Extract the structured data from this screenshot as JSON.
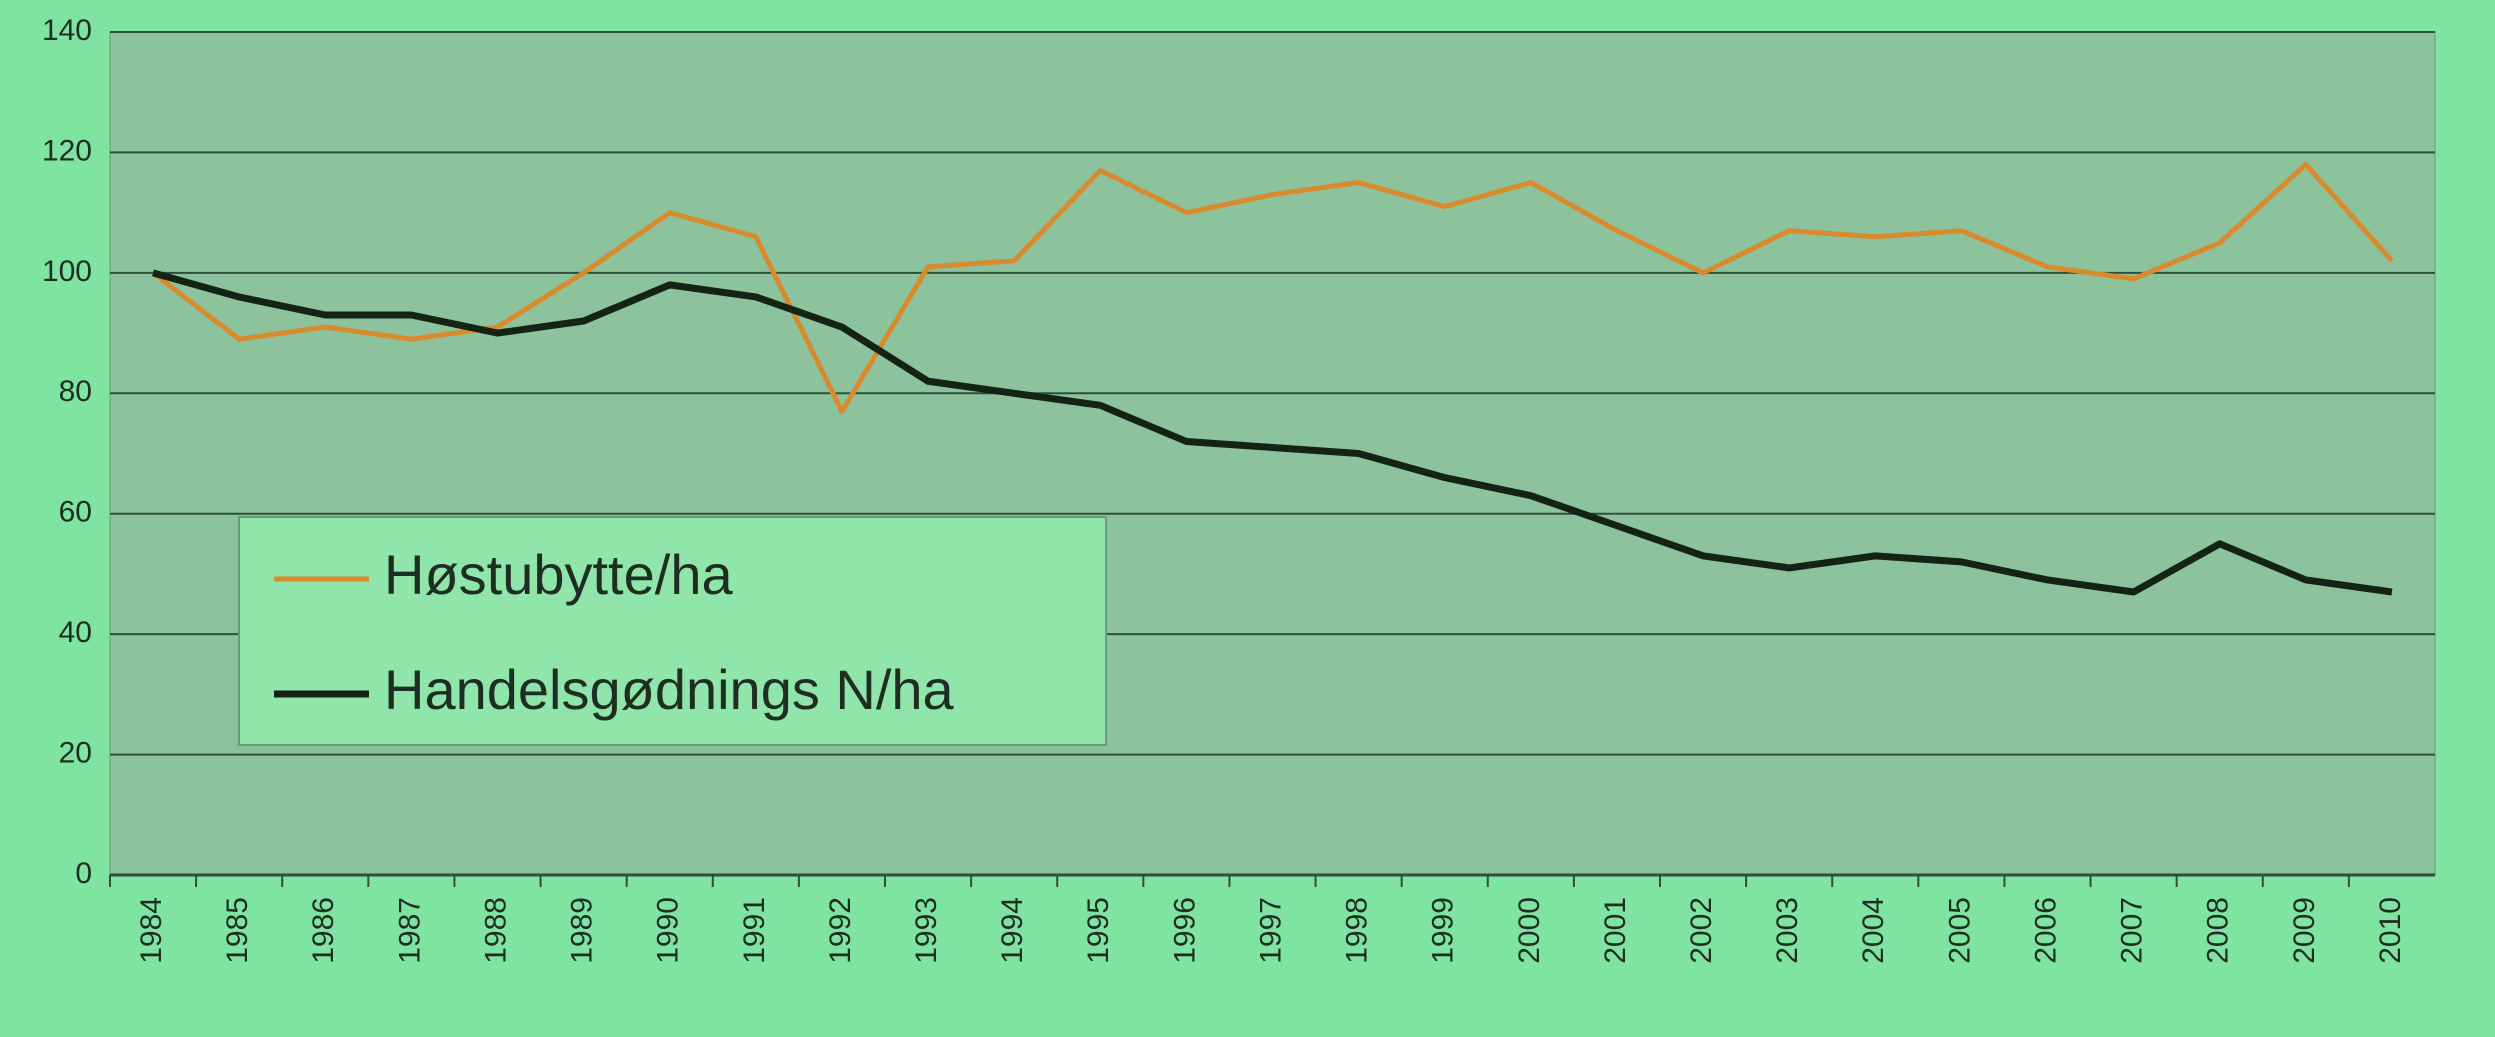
{
  "chart_data": {
    "type": "line",
    "categories": [
      "1984",
      "1985",
      "1986",
      "1987",
      "1988",
      "1989",
      "1990",
      "1991",
      "1992",
      "1993",
      "1994",
      "1995",
      "1996",
      "1997",
      "1998",
      "1999",
      "2000",
      "2001",
      "2002",
      "2003",
      "2004",
      "2005",
      "2006",
      "2007",
      "2008",
      "2009",
      "2010"
    ],
    "series": [
      {
        "name": "Høstubytte/ha",
        "color": "#d98a2c",
        "values": [
          100,
          89,
          91,
          89,
          91,
          100,
          110,
          106,
          77,
          101,
          102,
          117,
          110,
          113,
          115,
          111,
          115,
          107,
          100,
          107,
          106,
          107,
          101,
          99,
          105,
          118,
          102
        ]
      },
      {
        "name": "Handelsgødnings N/ha",
        "color": "#142414",
        "values": [
          100,
          96,
          93,
          93,
          90,
          92,
          98,
          96,
          91,
          82,
          80,
          78,
          72,
          71,
          70,
          66,
          63,
          58,
          53,
          51,
          53,
          52,
          49,
          47,
          55,
          49,
          47
        ]
      }
    ],
    "ylim": [
      0,
      140
    ],
    "yticks": [
      0,
      20,
      40,
      60,
      80,
      100,
      120,
      140
    ],
    "grid": true,
    "legend": "lower-left"
  }
}
